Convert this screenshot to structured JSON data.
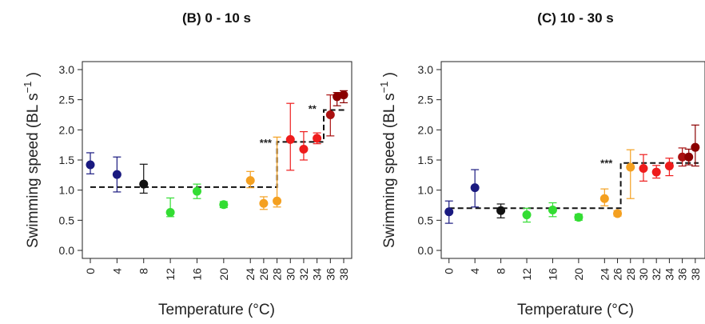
{
  "chart_data": [
    {
      "type": "scatter",
      "title": "(B) 0 - 10 s",
      "xlabel": "Temperature (°C)",
      "ylabel": "Swimming speed (BL s",
      "ylabel_sup": "−1",
      "ylabel_close": ")",
      "ylim": [
        0,
        3
      ],
      "yticks": [
        "0.0",
        "0.5",
        "1.0",
        "1.5",
        "2.0",
        "2.5",
        "3.0"
      ],
      "xticks": [
        "0",
        "4",
        "8",
        "12",
        "16",
        "20",
        "24",
        "26",
        "28",
        "30",
        "32",
        "34",
        "36",
        "38"
      ],
      "points": [
        {
          "x": 0,
          "y": 1.42,
          "lo": 1.27,
          "hi": 1.62,
          "color": "#1a1a80"
        },
        {
          "x": 4,
          "y": 1.26,
          "lo": 0.97,
          "hi": 1.55,
          "color": "#1a1a80"
        },
        {
          "x": 8,
          "y": 1.1,
          "lo": 0.95,
          "hi": 1.43,
          "color": "#111111"
        },
        {
          "x": 12,
          "y": 0.63,
          "lo": 0.56,
          "hi": 0.87,
          "color": "#33dd33"
        },
        {
          "x": 16,
          "y": 0.98,
          "lo": 0.86,
          "hi": 1.1,
          "color": "#33dd33"
        },
        {
          "x": 20,
          "y": 0.76,
          "lo": 0.71,
          "hi": 0.81,
          "color": "#33dd33"
        },
        {
          "x": 24,
          "y": 1.16,
          "lo": 1.04,
          "hi": 1.31,
          "color": "#f4a020"
        },
        {
          "x": 26,
          "y": 0.78,
          "lo": 0.68,
          "hi": 0.89,
          "color": "#f4a020"
        },
        {
          "x": 28,
          "y": 0.82,
          "lo": 0.72,
          "hi": 1.88,
          "color": "#f4a020"
        },
        {
          "x": 30,
          "y": 1.84,
          "lo": 1.33,
          "hi": 2.44,
          "color": "#ee1c1c"
        },
        {
          "x": 32,
          "y": 1.68,
          "lo": 1.5,
          "hi": 1.97,
          "color": "#ee1c1c"
        },
        {
          "x": 34,
          "y": 1.86,
          "lo": 1.77,
          "hi": 1.95,
          "color": "#ee1c1c"
        },
        {
          "x": 36,
          "y": 2.25,
          "lo": 1.9,
          "hi": 2.58,
          "color": "#aa1010"
        },
        {
          "x": 37,
          "y": 2.55,
          "lo": 2.4,
          "hi": 2.62,
          "color": "#8b0000"
        },
        {
          "x": 38,
          "y": 2.58,
          "lo": 2.45,
          "hi": 2.65,
          "color": "#8b0000"
        }
      ],
      "step": [
        [
          0,
          1.05
        ],
        [
          28,
          1.05
        ],
        [
          28,
          1.8
        ],
        [
          35,
          1.8
        ],
        [
          35,
          2.33
        ],
        [
          38.5,
          2.33
        ]
      ],
      "annotations": [
        {
          "text": "***",
          "x": 26.3,
          "y": 1.78
        },
        {
          "text": "**",
          "x": 33.3,
          "y": 2.34
        }
      ]
    },
    {
      "type": "scatter",
      "title": "(C) 10 - 30 s",
      "xlabel": "Temperature (°C)",
      "ylabel": "Swimming speed (BL s",
      "ylabel_sup": "−1",
      "ylabel_close": ")",
      "ylim": [
        0,
        3
      ],
      "yticks": [
        "0.0",
        "0.5",
        "1.0",
        "1.5",
        "2.0",
        "2.5",
        "3.0"
      ],
      "xticks": [
        "0",
        "4",
        "8",
        "12",
        "16",
        "20",
        "24",
        "26",
        "28",
        "30",
        "32",
        "34",
        "36",
        "38"
      ],
      "points": [
        {
          "x": 0,
          "y": 0.64,
          "lo": 0.45,
          "hi": 0.82,
          "color": "#1a1a80"
        },
        {
          "x": 4,
          "y": 1.04,
          "lo": 0.72,
          "hi": 1.34,
          "color": "#1a1a80"
        },
        {
          "x": 8,
          "y": 0.66,
          "lo": 0.54,
          "hi": 0.77,
          "color": "#111111"
        },
        {
          "x": 12,
          "y": 0.59,
          "lo": 0.47,
          "hi": 0.7,
          "color": "#33dd33"
        },
        {
          "x": 16,
          "y": 0.67,
          "lo": 0.56,
          "hi": 0.79,
          "color": "#33dd33"
        },
        {
          "x": 20,
          "y": 0.55,
          "lo": 0.5,
          "hi": 0.6,
          "color": "#33dd33"
        },
        {
          "x": 24,
          "y": 0.86,
          "lo": 0.74,
          "hi": 1.02,
          "color": "#f4a020"
        },
        {
          "x": 26,
          "y": 0.61,
          "lo": 0.57,
          "hi": 0.66,
          "color": "#f4a020"
        },
        {
          "x": 28,
          "y": 1.38,
          "lo": 0.86,
          "hi": 1.67,
          "color": "#f4a020"
        },
        {
          "x": 30,
          "y": 1.36,
          "lo": 1.15,
          "hi": 1.59,
          "color": "#ee1c1c"
        },
        {
          "x": 32,
          "y": 1.3,
          "lo": 1.2,
          "hi": 1.41,
          "color": "#ee1c1c"
        },
        {
          "x": 34,
          "y": 1.4,
          "lo": 1.24,
          "hi": 1.53,
          "color": "#ee1c1c"
        },
        {
          "x": 36,
          "y": 1.55,
          "lo": 1.4,
          "hi": 1.7,
          "color": "#aa1010"
        },
        {
          "x": 37,
          "y": 1.55,
          "lo": 1.42,
          "hi": 1.68,
          "color": "#8b0000"
        },
        {
          "x": 38,
          "y": 1.71,
          "lo": 1.4,
          "hi": 2.08,
          "color": "#8b0000"
        }
      ],
      "step": [
        [
          0,
          0.7
        ],
        [
          26.5,
          0.7
        ],
        [
          26.5,
          1.45
        ],
        [
          38.5,
          1.45
        ]
      ],
      "annotations": [
        {
          "text": "***",
          "x": 24.3,
          "y": 1.44
        }
      ]
    }
  ]
}
